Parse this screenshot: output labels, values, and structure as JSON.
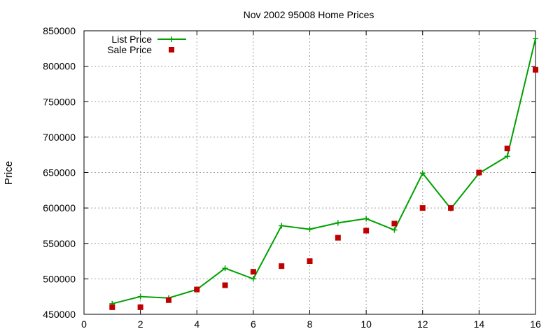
{
  "chart_data": {
    "type": "line",
    "title": "Nov 2002 95008 Home Prices",
    "xlabel": "",
    "ylabel": "Price",
    "xlim": [
      0,
      16
    ],
    "ylim": [
      450000,
      850000
    ],
    "x_ticks": [
      0,
      2,
      4,
      6,
      8,
      10,
      12,
      14,
      16
    ],
    "y_ticks": [
      450000,
      500000,
      550000,
      600000,
      650000,
      700000,
      750000,
      800000,
      850000
    ],
    "grid": true,
    "legend_position": "top-left",
    "series": [
      {
        "name": "List Price",
        "style": "lines+points",
        "marker": "plus",
        "color": "#00a000",
        "x": [
          1,
          2,
          3,
          4,
          5,
          6,
          7,
          8,
          9,
          10,
          11,
          12,
          13,
          14,
          15,
          16
        ],
        "values": [
          465000,
          475000,
          473000,
          485000,
          515000,
          500000,
          575000,
          570000,
          579000,
          585000,
          569000,
          649000,
          599000,
          649000,
          673000,
          839000
        ]
      },
      {
        "name": "Sale Price",
        "style": "points",
        "marker": "square",
        "color": "#c00000",
        "x": [
          1,
          2,
          3,
          4,
          5,
          6,
          7,
          8,
          9,
          10,
          11,
          12,
          13,
          14,
          15,
          16
        ],
        "values": [
          460000,
          460000,
          470000,
          485000,
          491000,
          510000,
          518000,
          525000,
          558000,
          568000,
          578000,
          600000,
          600000,
          650000,
          684000,
          795000
        ]
      }
    ]
  }
}
